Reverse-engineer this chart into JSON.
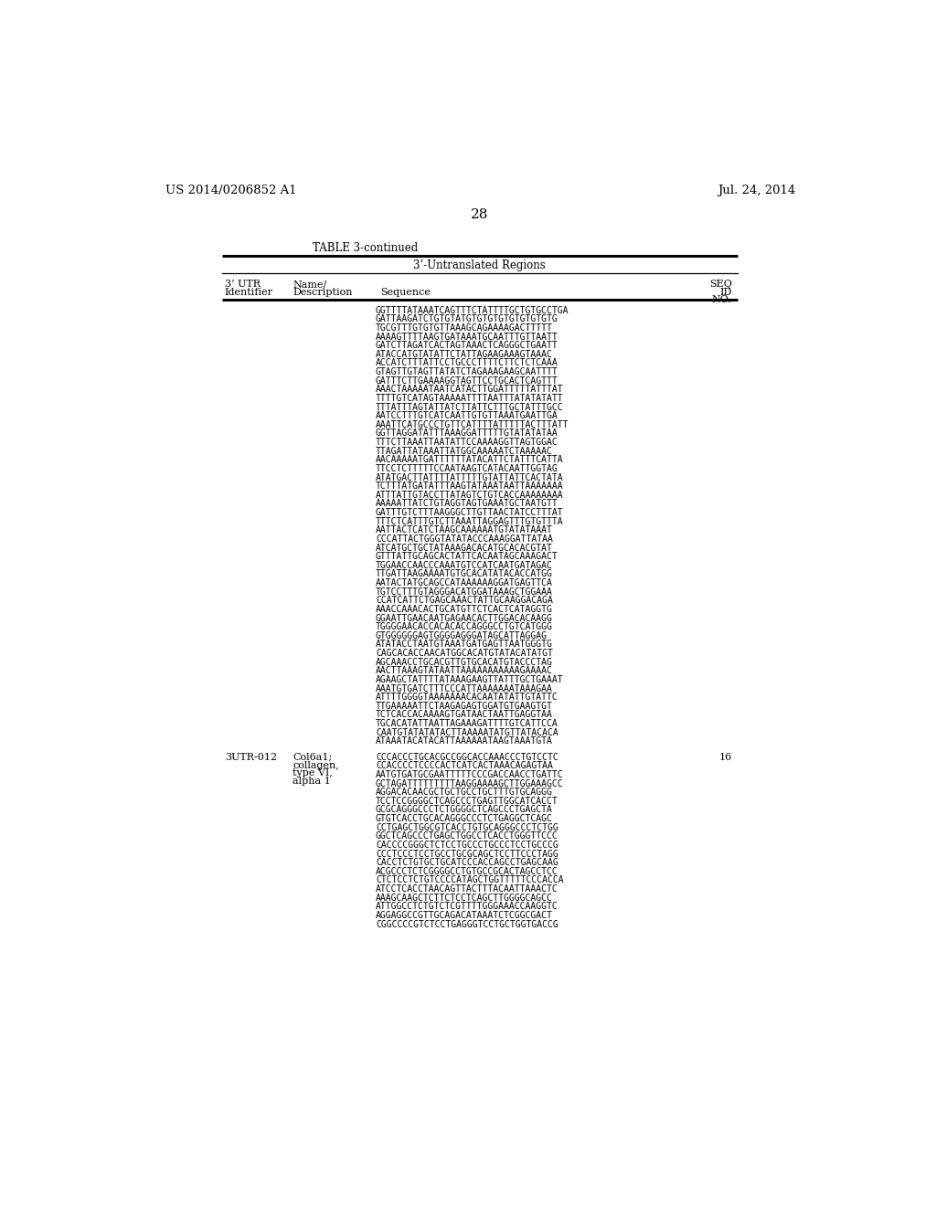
{
  "patent_number": "US 2014/0206852 A1",
  "date": "Jul. 24, 2014",
  "page_number": "28",
  "table_title": "TABLE 3-continued",
  "table_subtitle": "3’-Untranslated Regions",
  "bg_color": "#ffffff",
  "text_color": "#000000",
  "sequence_block_1": [
    "GGTTTTATAAATCAGTTTCTATTTTGCTGTGCCTGA",
    "GATTAAGATCTGTGTATGTGTGTGTGTGTGTGTG",
    "TGCGTTTGTGTGTTAAAGCAGAAAAGACTTTTT",
    "AAAAGTTTTAAGTGATAAATGCAATTTGTTAATT",
    "GATCTTAGATCACTAGTAAACTCAGGGCTGAATT",
    "ATACCATGTATATTCTATTAGAAGAAAGTAAAC",
    "ACCATCTTTATTCCTGCCCTTTTCTTCTCTCAAA",
    "GTAGTTGTAGTTATATCTAGAAAGAAGCAATTTT",
    "GATTTCTTGAAAAGGTAGTTCCTGCACTCAGTTT",
    "AAACTAAAAATAATCATACTTGGATTTTTATTTAT",
    "TTTTGTCATAGTAAAAATTTTAATTTATATATATT",
    "TTTATTTAGTATTATCTTATTCTTTGCTATTTGCC",
    "AATCCTTTGTCATCAATTGTGTTAAATGAATTGA",
    "AAATTCATGCCCTGTTCATTTTATTTTTACTTTATT",
    "GGTTAGGATATTTAAAGGATTTTTGTATATATAА",
    "TTTCTTAAATTAATATTCCAAAAGGTTAGTGGAC",
    "TTAGATTATAAATTATGGCAAAAATCTAAAAAC",
    "AACAAAAATGATTTTTTATACATTCTATTTCATTA",
    "TTCCTCTTTTTCCAATAAGTCATACAATTGGTAG",
    "ATATGACTTATTTTATTTTTGTATTATTCACTATA",
    "TCTTTATGATATTTAAGTATAAATAATTAAAAAAA",
    "ATTTATTGTACCTTATAGTCTGTCACCAAAAAAAA",
    "AAAAATTATCTGTAGGTAGTGAAATGCTAATGTT",
    "GATTTGTCTTTAAGGGCTTGTTAACTATCCTTTAT",
    "TTTCTCATTTGTCTTAAATTAGGAGTTTGTGTTTA",
    "AATTACTCATCTAAGCAAAAAATGTATATAAAT",
    "CCCATTACTGGGTATATACCCAAAGGATTATAA",
    "ATCATGCTGCTATAAAGACACATGCACACGTAT",
    "GTTTATTGCAGCACTATTCACAATAGCAAAGACT",
    "TGGAACCAACCCAAATGTCCATCAATGATAGAC",
    "TTGATTAAGAAAATGTGCACATATACACCATGG",
    "AATACTATGCAGCCATAAAAAAGGATGAGTTCA",
    "TGTCCTTTGTAGGGACATGGATAAAGCTGGAAA",
    "CCATCATTCTGAGCAAACTATTGCAAGGACAGA",
    "AAACCAAACACTGCATGTTCTCACTCATAGGTG",
    "GGAATTGAACAATGAGAACACTTGGACACAAGG",
    "TGGGGAACACCACACACCAGGGCCTGTCATGGG",
    "GTGGGGGGAGTGGGGAGGGATAGCATTAGGAG",
    "ATATACCTAATGTAAATGATGAGTTAATGGGTG",
    "CAGCACACCAACATGGCACATGTATACATATGT",
    "AGCAAACCTGCACGTTGTGCACATGTACCCTAG",
    "AACTTAAAGTATAATTAAAAAAAAAAAGAAAAC",
    "AGAAGCTATTTTATAAAGAAGTTATTTGCTGAAAT",
    "AAATGTGATCTTTCCCATTAAAAAAATAAAGAA",
    "ATTTTGGGGTAAAAAAACACAATATATTGTATTC",
    "TTGAAAAATTCTAAGAGAGTGGATGTGAAGTGT",
    "TCTCACCACAAAAGTGATAACTAATTGAGGTAA",
    "TGCACATATTAATTAGAAAGATTTTGTCATTCCA",
    "CAATGTATATATACTTAAAAATATGTTATACACA",
    "ATAAATACATACATTAAAAAATAAGTAAATGTA"
  ],
  "entry_2_id": "3UTR-012",
  "entry_2_name_lines": [
    "Col6a1;",
    "collagen,",
    "type VI,",
    "alpha 1"
  ],
  "entry_2_seq_num": "16",
  "sequence_block_2": [
    "CCCACCCTGCACGCCGGCACCAAACCCTGTCCTC",
    "CCACCCCTCCCCACTCATCACTAAACAGAGTAA",
    "AATGTGATGCGAATTTTTCCCGACCAACCTGATTC",
    "GCTAGATTTTTTTTTAAGGAAAAGCTTGGAAAGCC",
    "AGGACACAACGCTGCTGCCTGCTTTGTGCAGGG",
    "TCCTCCGGGGCTCAGCCCTGAGTTGGCATCACCT",
    "GCGCAGGGCCCTCTGGGGCTCAGCCCTGAGCTA",
    "GTGTCACCTGCACAGGGCCCTCTGAGGCTCAGC",
    "CCTGAGCTGGCGTCACCTGTGCAGGGCCCTCTGG",
    "GGCTCAGCCCTGAGCTGGCCTCACCTGGGTTCCC",
    "CACCCCGGGCTCTCCTGCCCTGCCCTCCTGCCCG",
    "CCCTCCCTCCTGCCTGCGCAGCTCCTTCCCTAGG",
    "CACCTCTGTGCTGCATCCCACCAGCCTGAGCAAG",
    "ACGCCCTCTCGGGGCCTGTGCCGCACTAGCCTCC",
    "CTCTCCTCTGTCCCCATAGCTGGTTTTTCCCACCA",
    "ATCCTCACCTAACAGTTACTTTACAATTAAACTC",
    "AAAGCAAGCTCTTCTCCTCAGCTTGGGGCAGCC",
    "ATTGGCCTCTGTCTCGTTTTGGGAAACCAAGGTC",
    "AGGAGGCCGTTGCAGACATAAATCTCGGCGACT",
    "CGGCCCCGTCTCCTGAGGGTCCTGCTGGTGACCG"
  ]
}
